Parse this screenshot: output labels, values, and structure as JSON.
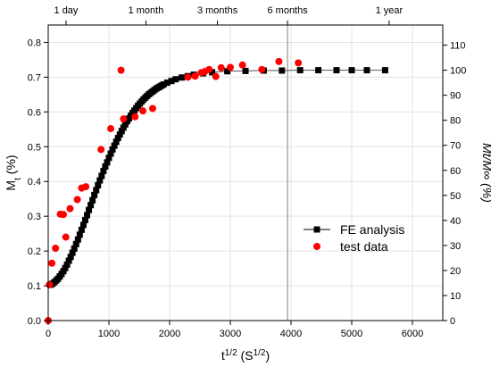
{
  "chart_data": {
    "type": "scatter",
    "xlabel": "t",
    "xlabel_sup1": "1/2",
    "xlabel_mid": " (S",
    "xlabel_sup2": "1/2",
    "xlabel_end": ")",
    "ylabel_left": "M",
    "ylabel_left_sub": "t",
    "ylabel_left_suffix": " (%)",
    "ylabel_right": "Mt/M∞ (%)",
    "xlim": [
      0,
      6500
    ],
    "ylim_left": [
      0,
      0.85
    ],
    "ylim_right": [
      0,
      118.0555
    ],
    "x_ticks": [
      0,
      1000,
      2000,
      3000,
      4000,
      5000,
      6000
    ],
    "y_left_ticks": [
      0.0,
      0.1,
      0.2,
      0.3,
      0.4,
      0.5,
      0.6,
      0.7,
      0.8
    ],
    "y_right_ticks": [
      0,
      10,
      20,
      30,
      40,
      50,
      60,
      70,
      80,
      90,
      100,
      110
    ],
    "top_axis_ticks": [
      {
        "label": "1 day",
        "x": 294
      },
      {
        "label": "1 month",
        "x": 1610
      },
      {
        "label": "3 months",
        "x": 2788
      },
      {
        "label": "6 months",
        "x": 3943
      },
      {
        "label": "1 year",
        "x": 5616
      }
    ],
    "grid": true,
    "legend_position": "lower-right",
    "series": [
      {
        "name": "FE analysis",
        "color": "#000000",
        "marker": "square",
        "x": [
          40,
          70,
          100,
          130,
          160,
          190,
          220,
          250,
          280,
          310,
          340,
          370,
          400,
          430,
          460,
          490,
          520,
          550,
          580,
          610,
          640,
          670,
          700,
          730,
          760,
          790,
          820,
          850,
          880,
          910,
          940,
          970,
          1000,
          1030,
          1060,
          1090,
          1120,
          1150,
          1180,
          1210,
          1240,
          1270,
          1300,
          1330,
          1360,
          1390,
          1420,
          1450,
          1480,
          1510,
          1540,
          1570,
          1600,
          1630,
          1660,
          1690,
          1720,
          1750,
          1780,
          1810,
          1840,
          1870,
          1900,
          1960,
          2030,
          2100,
          2200,
          2300,
          2400,
          2550,
          2700,
          2950,
          3250,
          3550,
          3850,
          4150,
          4450,
          4750,
          5000,
          5250,
          5550
        ],
        "y": [
          0.103,
          0.106,
          0.11,
          0.115,
          0.12,
          0.127,
          0.134,
          0.142,
          0.151,
          0.161,
          0.172,
          0.183,
          0.195,
          0.207,
          0.22,
          0.233,
          0.247,
          0.261,
          0.275,
          0.289,
          0.303,
          0.318,
          0.332,
          0.346,
          0.361,
          0.375,
          0.389,
          0.403,
          0.416,
          0.43,
          0.443,
          0.455,
          0.468,
          0.48,
          0.492,
          0.503,
          0.514,
          0.525,
          0.535,
          0.545,
          0.555,
          0.564,
          0.573,
          0.581,
          0.589,
          0.597,
          0.604,
          0.611,
          0.618,
          0.624,
          0.63,
          0.636,
          0.641,
          0.646,
          0.651,
          0.655,
          0.659,
          0.663,
          0.667,
          0.67,
          0.673,
          0.676,
          0.679,
          0.684,
          0.689,
          0.694,
          0.699,
          0.703,
          0.707,
          0.711,
          0.714,
          0.717,
          0.718,
          0.719,
          0.719,
          0.72,
          0.72,
          0.72,
          0.72,
          0.72,
          0.72
        ]
      },
      {
        "name": "test data",
        "color": "#ff0000",
        "marker": "circle",
        "x": [
          0,
          20,
          60,
          120,
          200,
          250,
          290,
          360,
          480,
          550,
          620,
          870,
          1030,
          1200,
          1240,
          1430,
          1560,
          1720,
          2300,
          2420,
          2520,
          2580,
          2650,
          2760,
          2850,
          3000,
          3200,
          3520,
          3800,
          4120
        ],
        "y": [
          0.0,
          0.103,
          0.165,
          0.208,
          0.306,
          0.305,
          0.24,
          0.322,
          0.348,
          0.381,
          0.385,
          0.492,
          0.552,
          0.72,
          0.58,
          0.586,
          0.603,
          0.61,
          0.7,
          0.703,
          0.713,
          0.716,
          0.722,
          0.702,
          0.727,
          0.728,
          0.735,
          0.722,
          0.745,
          0.741
        ]
      }
    ],
    "vertical_line": {
      "x": 3943,
      "color": "#aaaaaa"
    }
  }
}
